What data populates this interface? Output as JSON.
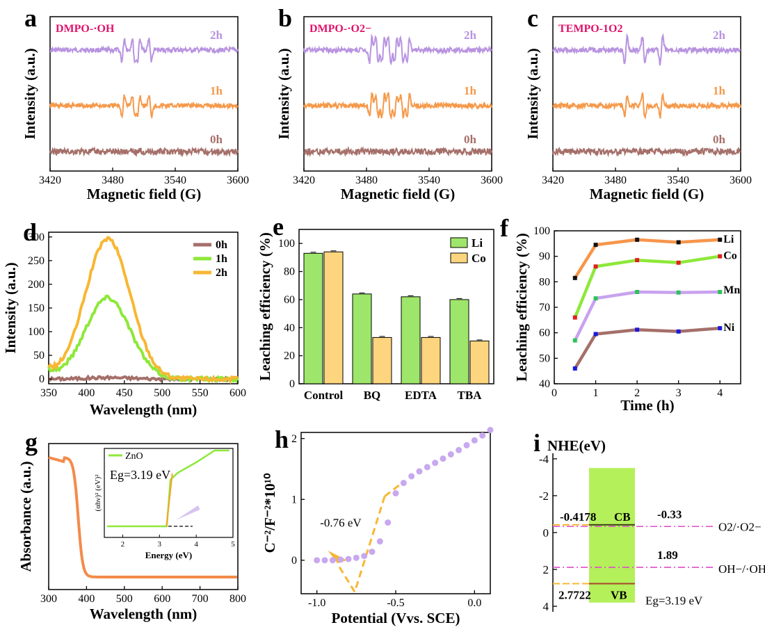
{
  "chart_data": [
    {
      "id": "a",
      "type": "line",
      "panel_label": "a",
      "title": "DMPO-·OH",
      "xlabel": "Magnetic field (G)",
      "ylabel": "Intensity (a.u.)",
      "xlim": [
        3420,
        3600
      ],
      "xticks": [
        "3420",
        "3480",
        "3540",
        "3600"
      ],
      "series": [
        {
          "name": "2h",
          "color": "#b893e0",
          "peaks": [
            3490,
            3500,
            3505,
            3516
          ],
          "amp": 1.0
        },
        {
          "name": "1h",
          "color": "#f5994a",
          "peaks": [
            3490,
            3500,
            3505,
            3516
          ],
          "amp": 0.9
        },
        {
          "name": "0h",
          "color": "#a56f69",
          "peaks": [
            3505
          ],
          "amp": 0.15
        }
      ]
    },
    {
      "id": "b",
      "type": "line",
      "panel_label": "b",
      "title": "DMPO-·O2−",
      "xlabel": "Magnetic field (G)",
      "ylabel": "Intensity (a.u.)",
      "xlim": [
        3420,
        3600
      ],
      "xticks": [
        "3420",
        "3480",
        "3540",
        "3600"
      ],
      "series": [
        {
          "name": "2h",
          "color": "#b893e0",
          "peaks": [
            3484,
            3490,
            3496,
            3502,
            3508,
            3514,
            3520
          ],
          "amp": 1.1
        },
        {
          "name": "1h",
          "color": "#f5994a",
          "peaks": [
            3484,
            3490,
            3496,
            3502,
            3508,
            3514,
            3520
          ],
          "amp": 1.0
        },
        {
          "name": "0h",
          "color": "#a56f69",
          "peaks": [],
          "amp": 0
        }
      ]
    },
    {
      "id": "c",
      "type": "line",
      "panel_label": "c",
      "title": "TEMPO-1O2",
      "xlabel": "Magnetic field (G)",
      "ylabel": "Intensity (a.u.)",
      "xlim": [
        3420,
        3600
      ],
      "xticks": [
        "3420",
        "3480",
        "3540",
        "3600"
      ],
      "series": [
        {
          "name": "2h",
          "color": "#b893e0",
          "peaks": [
            3490,
            3507,
            3524
          ],
          "amp": 1.2
        },
        {
          "name": "1h",
          "color": "#f5994a",
          "peaks": [
            3490,
            3507,
            3524
          ],
          "amp": 1.0
        },
        {
          "name": "0h",
          "color": "#a56f69",
          "peaks": [],
          "amp": 0
        }
      ]
    },
    {
      "id": "d",
      "type": "line",
      "panel_label": "d",
      "xlabel": "Wavelength (nm)",
      "ylabel": "Intensity (a.u.)",
      "xlim": [
        350,
        600
      ],
      "ylim": [
        -10,
        310
      ],
      "xticks": [
        "350",
        "400",
        "450",
        "500",
        "550",
        "600"
      ],
      "yticks": [
        "0",
        "50",
        "100",
        "150",
        "200",
        "250",
        "300"
      ],
      "series": [
        {
          "name": "0h",
          "color": "#a56f69",
          "center": 430,
          "peak": 3
        },
        {
          "name": "1h",
          "color": "#8ee83a",
          "center": 428,
          "peak": 172
        },
        {
          "name": "2h",
          "color": "#f7b733",
          "center": 428,
          "peak": 296
        }
      ]
    },
    {
      "id": "e",
      "type": "bar",
      "panel_label": "e",
      "xlabel": "",
      "ylabel": "Leaching efficiency (%)",
      "ylim": [
        0,
        110
      ],
      "categories": [
        "Control",
        "BQ",
        "EDTA",
        "TBA"
      ],
      "yticks": [
        "0",
        "20",
        "40",
        "60",
        "80",
        "100"
      ],
      "series": [
        {
          "name": "Li",
          "color": "#9ee66b",
          "values": [
            93,
            64,
            62,
            60
          ]
        },
        {
          "name": "Co",
          "color": "#fdd57e",
          "values": [
            94,
            33,
            33,
            30.5
          ]
        }
      ]
    },
    {
      "id": "f",
      "type": "line",
      "panel_label": "f",
      "xlabel": "Time (h)",
      "ylabel": "Leaching efficiency (%)",
      "xlim": [
        0,
        4.5
      ],
      "ylim": [
        40,
        100
      ],
      "xticks": [
        "0",
        "1",
        "2",
        "3",
        "4"
      ],
      "yticks": [
        "40",
        "50",
        "60",
        "70",
        "80",
        "90",
        "100"
      ],
      "x": [
        0.5,
        1,
        2,
        3,
        4
      ],
      "series": [
        {
          "name": "Li",
          "color": "#f7954b",
          "marker": "#111111",
          "values": [
            81.5,
            94.5,
            96.5,
            95.5,
            96.5
          ]
        },
        {
          "name": "Co",
          "color": "#8ee83a",
          "marker": "#e02020",
          "values": [
            66,
            86,
            88.5,
            87.5,
            90
          ]
        },
        {
          "name": "Mn",
          "color": "#c8a2ef",
          "marker": "#2fc25b",
          "values": [
            57,
            73.5,
            76,
            75.8,
            76
          ]
        },
        {
          "name": "Ni",
          "color": "#a56f69",
          "marker": "#1a1ae0",
          "values": [
            46,
            59.5,
            61.2,
            60.5,
            61.8
          ]
        }
      ]
    },
    {
      "id": "g",
      "type": "line",
      "panel_label": "g",
      "xlabel": "Wavelength (nm)",
      "ylabel": "Absorbance (a.u.)",
      "xlim": [
        300,
        800
      ],
      "xticks": [
        "300",
        "400",
        "500",
        "600",
        "700",
        "800"
      ],
      "series": [
        {
          "name": "ZnO",
          "color": "#f38b4a"
        }
      ],
      "inset": {
        "legend": "ZnO",
        "annotation": "Eg=3.19 eV",
        "xlabel": "Energy (eV)",
        "ylabel": "(αhν)² (eV)²",
        "xlim": [
          1.5,
          5
        ],
        "xticks": [
          "2",
          "3",
          "4",
          "5"
        ],
        "eg": 3.19
      }
    },
    {
      "id": "h",
      "type": "scatter",
      "panel_label": "h",
      "xlabel": "Potential (Vvs. SCE)",
      "ylabel": "C⁻²/F⁻²*10¹⁰",
      "xlim": [
        -1.1,
        0.1
      ],
      "ylim": [
        -0.55,
        2.1
      ],
      "xticks": [
        "-1.0",
        "-0.5",
        "0.0"
      ],
      "yticks": [
        "0",
        "1",
        "2"
      ],
      "annotation": "-0.76 eV",
      "flat_band": -0.76,
      "x": [
        -1.0,
        -0.95,
        -0.9,
        -0.85,
        -0.8,
        -0.75,
        -0.7,
        -0.65,
        -0.6,
        -0.55,
        -0.5,
        -0.45,
        -0.4,
        -0.35,
        -0.3,
        -0.25,
        -0.2,
        -0.15,
        -0.1,
        -0.05,
        0.0,
        0.05,
        0.1
      ],
      "y": [
        0.0,
        0.0,
        0.0,
        0.01,
        0.02,
        0.04,
        0.07,
        0.14,
        0.31,
        0.62,
        1.1,
        1.27,
        1.38,
        1.46,
        1.53,
        1.6,
        1.67,
        1.74,
        1.81,
        1.89,
        1.97,
        2.05,
        2.14
      ]
    },
    {
      "id": "i",
      "type": "diagram",
      "panel_label": "i",
      "ylabel": "NHE(eV)",
      "ylim": [
        -4.3,
        4.3
      ],
      "yticks": [
        "-4",
        "-2",
        "0",
        "2",
        "4"
      ],
      "cb": -0.4178,
      "vb": 2.7722,
      "cb_label": "-0.4178",
      "cb_tag": "CB",
      "vb_label": "2.7722",
      "vb_tag": "VB",
      "eg_label": "Eg=3.19 eV",
      "levels": [
        {
          "value": -0.33,
          "label": "-0.33",
          "couple": "O2/·O2−"
        },
        {
          "value": 1.89,
          "label": "1.89",
          "couple": "OH−/·OH"
        }
      ]
    }
  ]
}
